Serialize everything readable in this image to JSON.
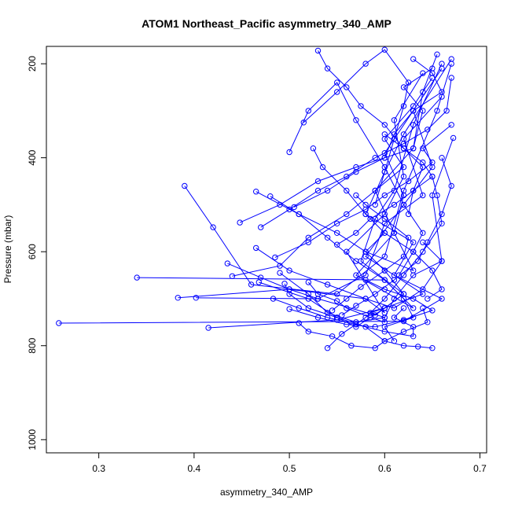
{
  "chart_data": {
    "type": "line",
    "title": "ATOM1 Northeast_Pacific asymmetry_340_AMP",
    "xlabel": "asymmetry_340_AMP",
    "ylabel": "Pressure (mbar)",
    "xlim": [
      0.245,
      0.707
    ],
    "ylim": [
      1028,
      163
    ],
    "y_reversed": true,
    "xticks": [
      0.3,
      0.4,
      0.5,
      0.6,
      0.7
    ],
    "xtick_labels": [
      "0.3",
      "0.4",
      "0.5",
      "0.6",
      "0.7"
    ],
    "yticks": [
      200,
      400,
      600,
      800,
      1000
    ],
    "ytick_labels": [
      "200",
      "400",
      "600",
      "800",
      "1000"
    ],
    "grid": false,
    "color": "#0000ff",
    "series": [
      {
        "x": [
          0.258,
          0.62,
          0.66,
          0.61,
          0.63,
          0.58,
          0.6,
          0.62,
          0.67
        ],
        "y": [
          752,
          748,
          700,
          650,
          580,
          520,
          430,
          350,
          190
        ]
      },
      {
        "x": [
          0.415,
          0.55,
          0.6,
          0.64,
          0.58,
          0.62,
          0.65,
          0.63,
          0.66
        ],
        "y": [
          762,
          745,
          720,
          690,
          610,
          500,
          420,
          300,
          210
        ]
      },
      {
        "x": [
          0.34,
          0.6,
          0.63,
          0.57,
          0.61,
          0.59,
          0.63,
          0.64,
          0.655
        ],
        "y": [
          655,
          660,
          720,
          650,
          560,
          470,
          380,
          260,
          180
        ]
      },
      {
        "x": [
          0.383,
          0.5,
          0.58,
          0.6,
          0.56,
          0.6,
          0.62,
          0.61,
          0.64
        ],
        "y": [
          698,
          680,
          700,
          730,
          600,
          520,
          440,
          320,
          220
        ]
      },
      {
        "x": [
          0.402,
          0.53,
          0.59,
          0.62,
          0.575,
          0.59,
          0.61,
          0.63,
          0.66
        ],
        "y": [
          698,
          700,
          735,
          690,
          620,
          530,
          470,
          330,
          200
        ]
      },
      {
        "x": [
          0.39,
          0.42,
          0.46,
          0.55,
          0.6,
          0.62,
          0.655,
          0.67
        ],
        "y": [
          460,
          548,
          670,
          690,
          610,
          470,
          300,
          200
        ]
      },
      {
        "x": [
          0.435,
          0.47,
          0.5,
          0.53,
          0.58,
          0.6,
          0.64,
          0.62,
          0.66
        ],
        "y": [
          625,
          655,
          680,
          700,
          650,
          540,
          480,
          360,
          270
        ]
      },
      {
        "x": [
          0.44,
          0.49,
          0.52,
          0.56,
          0.59,
          0.62,
          0.6,
          0.63,
          0.65
        ],
        "y": [
          652,
          630,
          570,
          520,
          470,
          420,
          360,
          290,
          230
        ]
      },
      {
        "x": [
          0.448,
          0.49,
          0.53,
          0.57,
          0.6,
          0.63,
          0.64,
          0.62,
          0.65
        ],
        "y": [
          538,
          500,
          450,
          420,
          400,
          380,
          300,
          250,
          210
        ]
      },
      {
        "x": [
          0.465,
          0.51,
          0.55,
          0.58,
          0.63,
          0.61,
          0.62,
          0.6,
          0.63
        ],
        "y": [
          472,
          520,
          560,
          600,
          640,
          560,
          480,
          390,
          300
        ]
      },
      {
        "x": [
          0.465,
          0.5,
          0.54,
          0.58,
          0.61,
          0.64,
          0.66,
          0.65,
          0.672
        ],
        "y": [
          592,
          640,
          670,
          700,
          720,
          680,
          620,
          480,
          358
        ]
      },
      {
        "x": [
          0.468,
          0.52,
          0.55,
          0.57,
          0.6,
          0.62,
          0.6,
          0.58,
          0.6
        ],
        "y": [
          665,
          700,
          740,
          760,
          720,
          690,
          640,
          600,
          560
        ]
      },
      {
        "x": [
          0.47,
          0.5,
          0.53,
          0.56,
          0.59,
          0.62,
          0.645,
          0.665,
          0.67
        ],
        "y": [
          548,
          510,
          470,
          440,
          400,
          370,
          340,
          300,
          230
        ]
      },
      {
        "x": [
          0.48,
          0.51,
          0.54,
          0.57,
          0.6,
          0.62,
          0.63,
          0.6,
          0.61
        ],
        "y": [
          482,
          520,
          570,
          620,
          660,
          700,
          740,
          760,
          790
        ]
      },
      {
        "x": [
          0.483,
          0.51,
          0.54,
          0.57,
          0.6,
          0.63,
          0.63,
          0.61,
          0.62
        ],
        "y": [
          700,
          720,
          740,
          755,
          770,
          780,
          760,
          740,
          720
        ]
      },
      {
        "x": [
          0.485,
          0.52,
          0.55,
          0.58,
          0.6,
          0.625,
          0.65,
          0.64,
          0.67
        ],
        "y": [
          612,
          580,
          540,
          510,
          480,
          450,
          410,
          380,
          330
        ]
      },
      {
        "x": [
          0.49,
          0.52,
          0.54,
          0.57,
          0.6,
          0.61,
          0.63,
          0.66,
          0.64
        ],
        "y": [
          645,
          690,
          730,
          750,
          740,
          700,
          650,
          620,
          580
        ]
      },
      {
        "x": [
          0.495,
          0.5,
          0.52,
          0.55,
          0.58,
          0.6,
          0.62,
          0.635,
          0.65
        ],
        "y": [
          668,
          690,
          720,
          740,
          760,
          790,
          800,
          802,
          805
        ]
      },
      {
        "x": [
          0.5,
          0.52,
          0.55,
          0.57,
          0.6,
          0.62,
          0.64,
          0.63,
          0.615
        ],
        "y": [
          388,
          300,
          240,
          320,
          420,
          500,
          560,
          600,
          650
        ]
      },
      {
        "x": [
          0.5,
          0.53,
          0.56,
          0.59,
          0.62,
          0.65,
          0.63,
          0.6,
          0.58
        ],
        "y": [
          722,
          740,
          755,
          760,
          745,
          725,
          700,
          680,
          660
        ]
      },
      {
        "x": [
          0.505,
          0.54,
          0.57,
          0.6,
          0.61,
          0.63,
          0.66,
          0.65,
          0.63
        ],
        "y": [
          505,
          470,
          430,
          400,
          350,
          300,
          260,
          220,
          190
        ]
      },
      {
        "x": [
          0.51,
          0.52,
          0.545,
          0.565,
          0.59,
          0.6,
          0.62,
          0.645,
          0.64
        ],
        "y": [
          752,
          770,
          780,
          800,
          805,
          790,
          770,
          750,
          720
        ]
      },
      {
        "x": [
          0.515,
          0.55,
          0.58,
          0.6,
          0.625,
          0.62,
          0.61,
          0.6,
          0.59
        ],
        "y": [
          325,
          260,
          200,
          170,
          240,
          290,
          360,
          430,
          500
        ]
      },
      {
        "x": [
          0.52,
          0.53,
          0.55,
          0.56,
          0.585,
          0.6,
          0.6,
          0.585,
          0.6
        ],
        "y": [
          665,
          690,
          705,
          720,
          740,
          750,
          740,
          730,
          720
        ]
      },
      {
        "x": [
          0.525,
          0.535,
          0.56,
          0.58,
          0.6,
          0.63,
          0.65,
          0.66,
          0.645
        ],
        "y": [
          380,
          420,
          470,
          520,
          560,
          600,
          640,
          680,
          700
        ]
      },
      {
        "x": [
          0.53,
          0.54,
          0.56,
          0.575,
          0.6,
          0.62,
          0.64,
          0.63,
          0.625
        ],
        "y": [
          172,
          210,
          250,
          290,
          330,
          380,
          420,
          470,
          520
        ]
      },
      {
        "x": [
          0.54,
          0.555,
          0.58,
          0.6,
          0.62,
          0.64,
          0.66,
          0.655,
          0.65
        ],
        "y": [
          805,
          775,
          740,
          700,
          650,
          600,
          540,
          480,
          440
        ]
      },
      {
        "x": [
          0.545,
          0.56,
          0.575,
          0.6,
          0.62,
          0.625,
          0.6,
          0.58,
          0.57
        ],
        "y": [
          725,
          700,
          675,
          640,
          610,
          570,
          530,
          500,
          480
        ]
      },
      {
        "x": [
          0.55,
          0.57,
          0.585,
          0.61,
          0.63,
          0.65,
          0.64,
          0.62,
          0.6
        ],
        "y": [
          585,
          560,
          530,
          500,
          470,
          440,
          410,
          380,
          350
        ]
      },
      {
        "x": [
          0.555,
          0.57,
          0.59,
          0.61,
          0.635,
          0.645,
          0.66,
          0.67,
          0.66
        ],
        "y": [
          735,
          715,
          690,
          660,
          620,
          580,
          520,
          460,
          400
        ]
      }
    ]
  }
}
